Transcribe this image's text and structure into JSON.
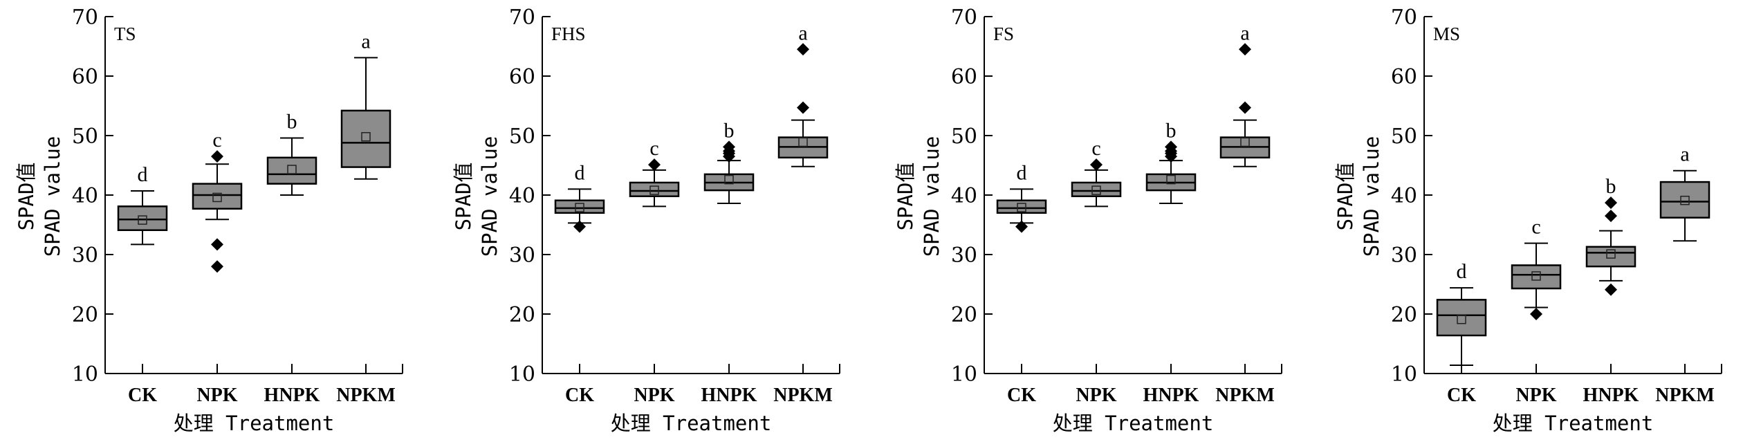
{
  "chart_data": [
    {
      "type": "boxplot",
      "panel_label": "TS",
      "ylabel_line1": "SPAD值",
      "ylabel_line2": "SPAD value",
      "xlabel": "处理 Treatment",
      "ylim": [
        10,
        70
      ],
      "yticks": [
        10,
        20,
        30,
        40,
        50,
        60,
        70
      ],
      "categories": [
        "CK",
        "NPK",
        "HNPK",
        "NPKM"
      ],
      "boxes": [
        {
          "category": "CK",
          "whisker_low": 31.7,
          "q1": 34.1,
          "median": 35.9,
          "q3": 38.1,
          "whisker_high": 40.7,
          "mean": 35.8,
          "outliers": [],
          "letter": "d"
        },
        {
          "category": "NPK",
          "whisker_low": 35.9,
          "q1": 37.7,
          "median": 40.0,
          "q3": 41.9,
          "whisker_high": 45.2,
          "mean": 39.6,
          "outliers": [
            46.5,
            31.7,
            28.0
          ],
          "letter": "c"
        },
        {
          "category": "HNPK",
          "whisker_low": 40.0,
          "q1": 41.9,
          "median": 43.5,
          "q3": 46.3,
          "whisker_high": 49.6,
          "mean": 44.3,
          "outliers": [],
          "letter": "b"
        },
        {
          "category": "NPKM",
          "whisker_low": 42.7,
          "q1": 44.7,
          "median": 48.8,
          "q3": 54.2,
          "whisker_high": 63.1,
          "mean": 49.8,
          "outliers": [],
          "letter": "a"
        }
      ]
    },
    {
      "type": "boxplot",
      "panel_label": "FHS",
      "ylabel_line1": "SPAD值",
      "ylabel_line2": "SPAD value",
      "xlabel": "处理 Treatment",
      "ylim": [
        10,
        70
      ],
      "yticks": [
        10,
        20,
        30,
        40,
        50,
        60,
        70
      ],
      "categories": [
        "CK",
        "NPK",
        "HNPK",
        "NPKM"
      ],
      "boxes": [
        {
          "category": "CK",
          "whisker_low": 35.3,
          "q1": 37.0,
          "median": 37.8,
          "q3": 39.1,
          "whisker_high": 41.0,
          "mean": 37.9,
          "outliers": [
            34.7
          ],
          "letter": "d"
        },
        {
          "category": "NPK",
          "whisker_low": 38.1,
          "q1": 39.8,
          "median": 40.7,
          "q3": 42.1,
          "whisker_high": 44.2,
          "mean": 40.8,
          "outliers": [
            45.1
          ],
          "letter": "c"
        },
        {
          "category": "HNPK",
          "whisker_low": 38.6,
          "q1": 40.8,
          "median": 42.1,
          "q3": 43.5,
          "whisker_high": 45.8,
          "mean": 42.6,
          "outliers": [
            48.1,
            47.4,
            47.0,
            46.5
          ],
          "letter": "b"
        },
        {
          "category": "NPKM",
          "whisker_low": 44.8,
          "q1": 46.3,
          "median": 48.1,
          "q3": 49.7,
          "whisker_high": 52.6,
          "mean": 48.9,
          "outliers": [
            64.5,
            54.7
          ],
          "letter": "a"
        }
      ]
    },
    {
      "type": "boxplot",
      "panel_label": "FS",
      "ylabel_line1": "SPAD值",
      "ylabel_line2": "SPAD value",
      "xlabel": "处理 Treatment",
      "ylim": [
        10,
        70
      ],
      "yticks": [
        10,
        20,
        30,
        40,
        50,
        60,
        70
      ],
      "categories": [
        "CK",
        "NPK",
        "HNPK",
        "NPKM"
      ],
      "boxes": [
        {
          "category": "CK",
          "whisker_low": 35.3,
          "q1": 37.0,
          "median": 37.8,
          "q3": 39.1,
          "whisker_high": 41.0,
          "mean": 37.9,
          "outliers": [
            34.7
          ],
          "letter": "d"
        },
        {
          "category": "NPK",
          "whisker_low": 38.1,
          "q1": 39.8,
          "median": 40.7,
          "q3": 42.1,
          "whisker_high": 44.2,
          "mean": 40.8,
          "outliers": [
            45.1
          ],
          "letter": "c"
        },
        {
          "category": "HNPK",
          "whisker_low": 38.6,
          "q1": 40.8,
          "median": 42.1,
          "q3": 43.5,
          "whisker_high": 45.8,
          "mean": 42.6,
          "outliers": [
            48.1,
            47.4,
            47.0,
            46.5
          ],
          "letter": "b"
        },
        {
          "category": "NPKM",
          "whisker_low": 44.8,
          "q1": 46.3,
          "median": 48.1,
          "q3": 49.7,
          "whisker_high": 52.6,
          "mean": 48.9,
          "outliers": [
            64.5,
            54.7
          ],
          "letter": "a"
        }
      ]
    },
    {
      "type": "boxplot",
      "panel_label": "MS",
      "ylabel_line1": "SPAD值",
      "ylabel_line2": "SPAD value",
      "xlabel": "处理 Treatment",
      "ylim": [
        10,
        70
      ],
      "yticks": [
        10,
        20,
        30,
        40,
        50,
        60,
        70
      ],
      "categories": [
        "CK",
        "NPK",
        "HNPK",
        "NPKM"
      ],
      "boxes": [
        {
          "category": "CK",
          "whisker_low": 11.4,
          "q1": 16.4,
          "median": 19.8,
          "q3": 22.4,
          "whisker_high": 24.4,
          "mean": 19.1,
          "outliers": [],
          "letter": "d"
        },
        {
          "category": "NPK",
          "whisker_low": 21.1,
          "q1": 24.3,
          "median": 26.6,
          "q3": 28.2,
          "whisker_high": 31.9,
          "mean": 26.4,
          "outliers": [
            20.0
          ],
          "letter": "c"
        },
        {
          "category": "HNPK",
          "whisker_low": 25.6,
          "q1": 28.0,
          "median": 30.3,
          "q3": 31.3,
          "whisker_high": 34.0,
          "mean": 30.1,
          "outliers": [
            38.7,
            36.5,
            24.1
          ],
          "letter": "b"
        },
        {
          "category": "NPKM",
          "whisker_low": 32.3,
          "q1": 36.2,
          "median": 38.9,
          "q3": 42.2,
          "whisker_high": 44.1,
          "mean": 39.1,
          "outliers": [],
          "letter": "a"
        }
      ]
    }
  ],
  "colors": {
    "box_fill": "#8c8c8c",
    "stroke": "#000000",
    "outlier": "#000000"
  }
}
